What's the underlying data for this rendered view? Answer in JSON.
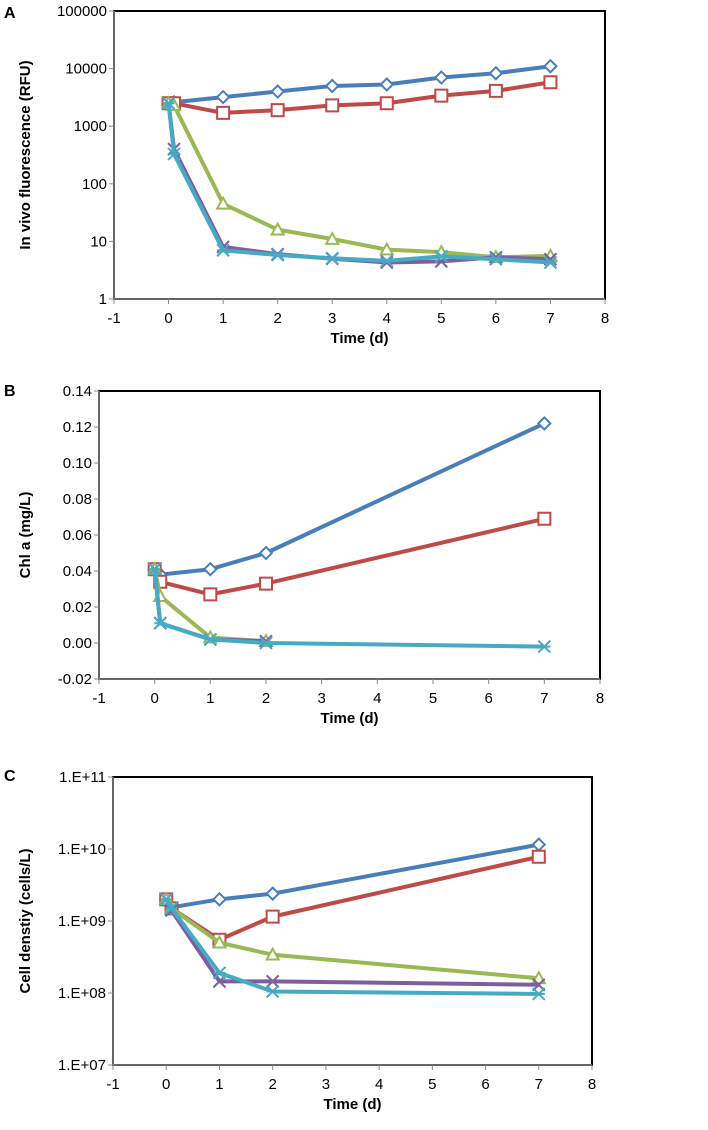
{
  "series_colors": {
    "diamond": "#4a7ebb",
    "square": "#be4b48",
    "triangle": "#98b954",
    "x": "#7d5fa0",
    "asterisk": "#46aac5"
  },
  "chart_data": [
    {
      "panel": "A",
      "type": "line",
      "xlabel": "Time (d)",
      "ylabel": "In vivo fluorescence (RFU)",
      "xlim": [
        -1,
        8
      ],
      "ylim": [
        1,
        100000
      ],
      "yscale": "log",
      "xticks": [
        "-1",
        "0",
        "1",
        "2",
        "3",
        "4",
        "5",
        "6",
        "7",
        "8"
      ],
      "yticks": [
        "1",
        "10",
        "100",
        "1000",
        "10000",
        "100000"
      ],
      "grid": false,
      "series": [
        {
          "marker": "diamond",
          "x": [
            0,
            0.1,
            1,
            2,
            3,
            4,
            5,
            6,
            7
          ],
          "y": [
            2500,
            2600,
            3200,
            4000,
            5000,
            5300,
            7000,
            8300,
            11000
          ]
        },
        {
          "marker": "square",
          "x": [
            0,
            0.1,
            1,
            2,
            3,
            4,
            5,
            6,
            7
          ],
          "y": [
            2500,
            2500,
            1700,
            1900,
            2300,
            2500,
            3400,
            4100,
            5800
          ]
        },
        {
          "marker": "triangle",
          "x": [
            0,
            0.1,
            1,
            2,
            3,
            4,
            5,
            6,
            7
          ],
          "y": [
            2500,
            2300,
            45,
            16,
            11,
            7.2,
            6.5,
            5.3,
            5.6
          ]
        },
        {
          "marker": "x",
          "x": [
            0,
            0.1,
            1,
            2,
            3,
            4,
            5,
            6,
            7
          ],
          "y": [
            2500,
            400,
            8,
            6,
            5,
            4.3,
            4.5,
            5.3,
            4.9
          ]
        },
        {
          "marker": "asterisk",
          "x": [
            0,
            0.1,
            1,
            2,
            3,
            4,
            5,
            6,
            7
          ],
          "y": [
            2500,
            330,
            7,
            5.8,
            5.1,
            4.6,
            5.5,
            4.9,
            4.3
          ]
        }
      ]
    },
    {
      "panel": "B",
      "type": "line",
      "xlabel": "Time (d)",
      "ylabel": "Chl a (mg/L)",
      "xlim": [
        -1,
        8
      ],
      "ylim": [
        -0.02,
        0.14
      ],
      "yscale": "linear",
      "xticks": [
        "-1",
        "0",
        "1",
        "2",
        "3",
        "4",
        "5",
        "6",
        "7",
        "8"
      ],
      "yticks": [
        "-0.02",
        "0.00",
        "0.02",
        "0.04",
        "0.06",
        "0.08",
        "0.10",
        "0.12",
        "0.14"
      ],
      "grid": false,
      "series": [
        {
          "marker": "diamond",
          "x": [
            0,
            0.1,
            1,
            2,
            7
          ],
          "y": [
            0.041,
            0.038,
            0.041,
            0.05,
            0.122
          ]
        },
        {
          "marker": "square",
          "x": [
            0,
            0.1,
            1,
            2,
            7
          ],
          "y": [
            0.041,
            0.034,
            0.027,
            0.033,
            0.069
          ]
        },
        {
          "marker": "triangle",
          "x": [
            0,
            0.1,
            1,
            2
          ],
          "y": [
            0.041,
            0.026,
            0.003,
            0.001
          ]
        },
        {
          "marker": "x",
          "x": [
            0,
            0.1,
            1,
            2
          ],
          "y": [
            0.041,
            0.011,
            0.002,
            0.001
          ]
        },
        {
          "marker": "asterisk",
          "x": [
            0,
            0.1,
            1,
            2,
            7
          ],
          "y": [
            0.041,
            0.011,
            0.002,
            0.0,
            -0.002
          ]
        }
      ]
    },
    {
      "panel": "C",
      "type": "line",
      "xlabel": "Time (d)",
      "ylabel": "Cell denstiy (cells/L)",
      "xlim": [
        -1,
        8
      ],
      "ylim": [
        10000000.0,
        100000000000.0
      ],
      "yscale": "log",
      "xticks": [
        "-1",
        "0",
        "1",
        "2",
        "3",
        "4",
        "5",
        "6",
        "7",
        "8"
      ],
      "yticks": [
        "1.E+07",
        "1.E+08",
        "1.E+09",
        "1.E+10",
        "1.E+11"
      ],
      "grid": false,
      "series": [
        {
          "marker": "diamond",
          "x": [
            0,
            0.1,
            1,
            2,
            7
          ],
          "y": [
            2000000000.0,
            1550000000.0,
            2000000000.0,
            2400000000.0,
            11500000000.0
          ]
        },
        {
          "marker": "square",
          "x": [
            0,
            0.1,
            1,
            2,
            7
          ],
          "y": [
            2000000000.0,
            1500000000.0,
            550000000.0,
            1150000000.0,
            7800000000.0
          ]
        },
        {
          "marker": "triangle",
          "x": [
            0,
            0.1,
            1,
            2,
            7
          ],
          "y": [
            2000000000.0,
            1500000000.0,
            500000000.0,
            340000000.0,
            160000000.0
          ]
        },
        {
          "marker": "x",
          "x": [
            0,
            0.1,
            1,
            2,
            7
          ],
          "y": [
            2000000000.0,
            1400000000.0,
            145000000.0,
            145000000.0,
            130000000.0
          ]
        },
        {
          "marker": "asterisk",
          "x": [
            0,
            0.1,
            1,
            2,
            7
          ],
          "y": [
            2000000000.0,
            1500000000.0,
            190000000.0,
            105000000.0,
            97000000.0
          ]
        }
      ]
    }
  ]
}
